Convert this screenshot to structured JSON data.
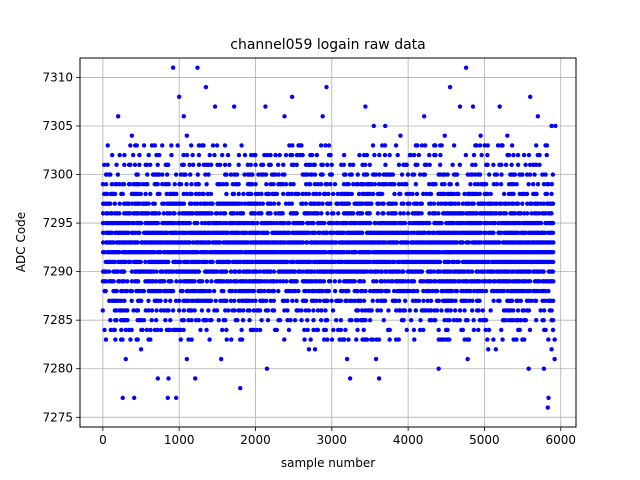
{
  "chart_data": {
    "type": "scatter",
    "title": "channel059 logain raw data",
    "xlabel": "sample number",
    "ylabel": "ADC Code",
    "xlim": [
      -300,
      6200
    ],
    "ylim": [
      7274,
      7312
    ],
    "x_ticks": [
      0,
      1000,
      2000,
      3000,
      4000,
      5000,
      6000
    ],
    "y_ticks": [
      7275,
      7280,
      7285,
      7290,
      7295,
      7300,
      7305,
      7310
    ],
    "grid": true,
    "marker_color": "#0000ff",
    "sample_count": 5900,
    "series": [
      {
        "band_levels": [
          7283,
          7284,
          7285,
          7286,
          7287,
          7288,
          7289,
          7290,
          7291,
          7292,
          7293,
          7294,
          7295,
          7296,
          7297,
          7298,
          7299,
          7300,
          7301,
          7302,
          7303
        ],
        "outliers": [
          {
            "x": 920,
            "y": 7311
          },
          {
            "x": 1240,
            "y": 7311
          },
          {
            "x": 4760,
            "y": 7311
          },
          {
            "x": 1350,
            "y": 7309
          },
          {
            "x": 2930,
            "y": 7309
          },
          {
            "x": 4550,
            "y": 7309
          },
          {
            "x": 1000,
            "y": 7308
          },
          {
            "x": 2480,
            "y": 7308
          },
          {
            "x": 5600,
            "y": 7308
          },
          {
            "x": 1470,
            "y": 7307
          },
          {
            "x": 1720,
            "y": 7307
          },
          {
            "x": 2130,
            "y": 7307
          },
          {
            "x": 3440,
            "y": 7307
          },
          {
            "x": 4680,
            "y": 7307
          },
          {
            "x": 4850,
            "y": 7307
          },
          {
            "x": 5200,
            "y": 7307
          },
          {
            "x": 200,
            "y": 7306
          },
          {
            "x": 1060,
            "y": 7306
          },
          {
            "x": 2380,
            "y": 7306
          },
          {
            "x": 2880,
            "y": 7306
          },
          {
            "x": 4210,
            "y": 7306
          },
          {
            "x": 5700,
            "y": 7306
          },
          {
            "x": 3550,
            "y": 7305
          },
          {
            "x": 3700,
            "y": 7305
          },
          {
            "x": 5880,
            "y": 7305
          },
          {
            "x": 5930,
            "y": 7305
          },
          {
            "x": 1800,
            "y": 7278
          },
          {
            "x": 260,
            "y": 7277
          },
          {
            "x": 410,
            "y": 7277
          },
          {
            "x": 850,
            "y": 7277
          },
          {
            "x": 960,
            "y": 7277
          },
          {
            "x": 5840,
            "y": 7277
          },
          {
            "x": 5830,
            "y": 7276
          },
          {
            "x": 860,
            "y": 7279
          },
          {
            "x": 1210,
            "y": 7279
          },
          {
            "x": 3240,
            "y": 7279
          },
          {
            "x": 3620,
            "y": 7279
          },
          {
            "x": 720,
            "y": 7279
          },
          {
            "x": 2150,
            "y": 7280
          },
          {
            "x": 4400,
            "y": 7280
          },
          {
            "x": 5580,
            "y": 7280
          },
          {
            "x": 5780,
            "y": 7280
          },
          {
            "x": 300,
            "y": 7281
          },
          {
            "x": 1100,
            "y": 7281
          },
          {
            "x": 1550,
            "y": 7281
          },
          {
            "x": 3200,
            "y": 7281
          },
          {
            "x": 3580,
            "y": 7281
          },
          {
            "x": 4780,
            "y": 7281
          },
          {
            "x": 5920,
            "y": 7281
          },
          {
            "x": 500,
            "y": 7282
          },
          {
            "x": 2700,
            "y": 7282
          },
          {
            "x": 2780,
            "y": 7282
          },
          {
            "x": 5050,
            "y": 7282
          },
          {
            "x": 5150,
            "y": 7282
          },
          {
            "x": 5880,
            "y": 7282
          },
          {
            "x": 40,
            "y": 7283
          },
          {
            "x": 5920,
            "y": 7283
          },
          {
            "x": 380,
            "y": 7304
          },
          {
            "x": 1100,
            "y": 7304
          },
          {
            "x": 3900,
            "y": 7304
          },
          {
            "x": 4480,
            "y": 7304
          },
          {
            "x": 4950,
            "y": 7304
          },
          {
            "x": 5300,
            "y": 7304
          }
        ]
      }
    ]
  }
}
